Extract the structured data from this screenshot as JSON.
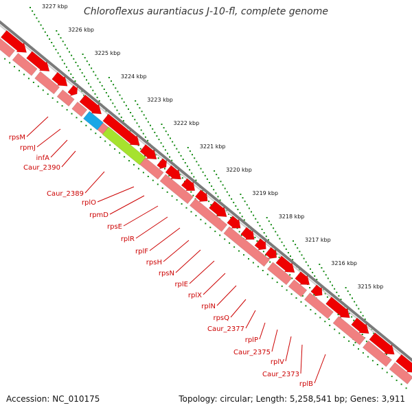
{
  "title": "Chloroflexus aurantiacus J-10-fl, complete genome",
  "footer": {
    "accession": "Accession: NC_010175",
    "summary": "Topology: circular; Length: 5,258,541 bp; Genes: 3,911"
  },
  "colors": {
    "backbone": "#7a7a7a",
    "forward_gene": "#ee0000",
    "reverse_gene": "#f08080",
    "label_line": "#cc0000",
    "tick_dots": "#118811",
    "accent_orange": "#ff8c00",
    "accent_blue": "#1aa7e6",
    "accent_green": "#a6e22e"
  },
  "scale_ticks": [
    "3227 kbp",
    "3226 kbp",
    "3225 kbp",
    "3224 kbp",
    "3223 kbp",
    "3222 kbp",
    "3221 kbp",
    "3220 kbp",
    "3219 kbp",
    "3218 kbp",
    "3217 kbp",
    "3216 kbp",
    "3215 kbp"
  ],
  "gene_labels": [
    "rpsM",
    "rpmJ",
    "infA",
    "Caur_2390",
    "Caur_2389",
    "rplO",
    "rpmD",
    "rpsE",
    "rplR",
    "rplF",
    "rpsH",
    "rpsN",
    "rplE",
    "rplX",
    "rplN",
    "rpsQ",
    "Caur_2377",
    "rplP",
    "Caur_2375",
    "rplV",
    "Caur_2373",
    "rplB"
  ]
}
